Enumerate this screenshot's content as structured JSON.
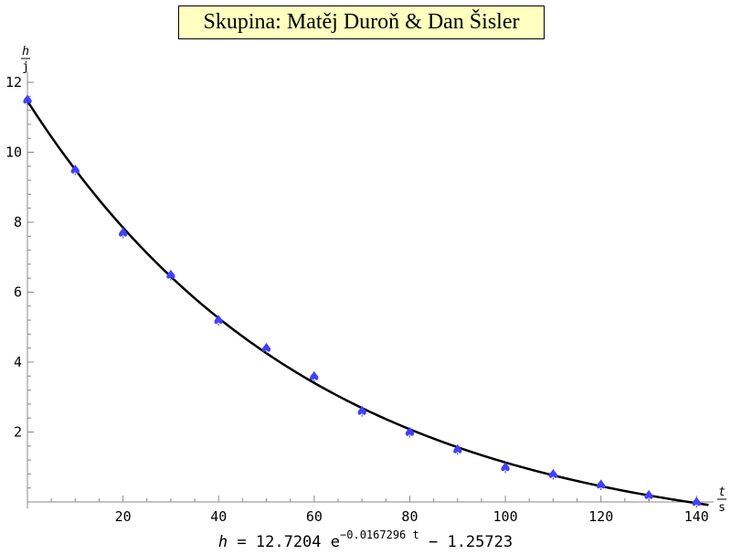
{
  "title": "Skupina: Matěj Duroň & Dan Šisler",
  "chart_data": {
    "type": "scatter",
    "y_label_num": "h",
    "y_label_den": "j",
    "x_label_num": "t",
    "x_label_den": "s",
    "xlim": [
      0,
      143
    ],
    "ylim": [
      0,
      12
    ],
    "x_ticks": [
      20,
      40,
      60,
      80,
      100,
      120,
      140
    ],
    "y_ticks": [
      2,
      4,
      6,
      8,
      10,
      12
    ],
    "grid": false,
    "marker_color": "#4040ff",
    "curve_color": "#000000",
    "points": [
      {
        "x": 0,
        "y": 11.5
      },
      {
        "x": 10,
        "y": 9.5
      },
      {
        "x": 20,
        "y": 7.7
      },
      {
        "x": 30,
        "y": 6.5
      },
      {
        "x": 40,
        "y": 5.2
      },
      {
        "x": 50,
        "y": 4.4
      },
      {
        "x": 60,
        "y": 3.6
      },
      {
        "x": 70,
        "y": 2.6
      },
      {
        "x": 80,
        "y": 2.0
      },
      {
        "x": 90,
        "y": 1.5
      },
      {
        "x": 100,
        "y": 1.0
      },
      {
        "x": 110,
        "y": 0.8
      },
      {
        "x": 120,
        "y": 0.5
      },
      {
        "x": 130,
        "y": 0.2
      },
      {
        "x": 140,
        "y": 0.0
      }
    ],
    "fit": {
      "a": 12.7204,
      "k": -0.0167296,
      "c": -1.25723
    }
  },
  "formula": {
    "lhs": "h",
    "eq": "=",
    "coef": "12.7204",
    "base": "e",
    "exponent": "−0.0167296 t",
    "tail": "− 1.25723"
  }
}
